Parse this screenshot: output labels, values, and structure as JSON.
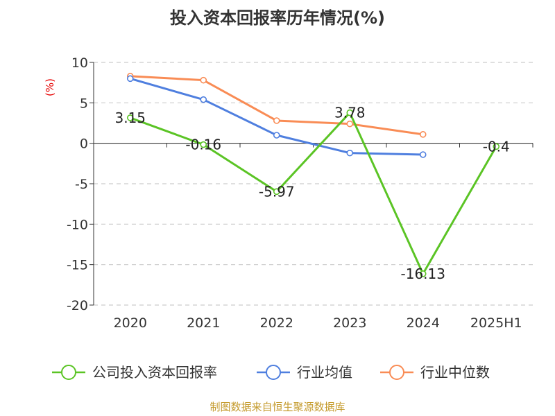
{
  "chart_data": {
    "type": "line",
    "title": "投入资本回报率历年情况(%)",
    "unit_label": "(%)",
    "categories": [
      "2020",
      "2021",
      "2022",
      "2023",
      "2024",
      "2025H1"
    ],
    "ylim": [
      -20,
      10
    ],
    "yticks": [
      10,
      5,
      0,
      -5,
      -10,
      -15,
      -20
    ],
    "grid": true,
    "legend_position": "bottom",
    "series": [
      {
        "name": "公司投入资本回报率",
        "color": "#5bc425",
        "values": [
          3.15,
          -0.16,
          -5.97,
          3.78,
          -16.13,
          -0.4
        ],
        "labels": [
          "3.15",
          "-0.16",
          "-5.97",
          "3.78",
          "-16.13",
          "-0.4"
        ]
      },
      {
        "name": "行业均值",
        "color": "#4f7fdf",
        "values": [
          8.0,
          5.4,
          1.0,
          -1.2,
          -1.4,
          null
        ]
      },
      {
        "name": "行业中位数",
        "color": "#f98c55",
        "values": [
          8.3,
          7.8,
          2.8,
          2.4,
          1.1,
          null
        ]
      }
    ],
    "source": "制图数据来自恒生聚源数据库"
  }
}
